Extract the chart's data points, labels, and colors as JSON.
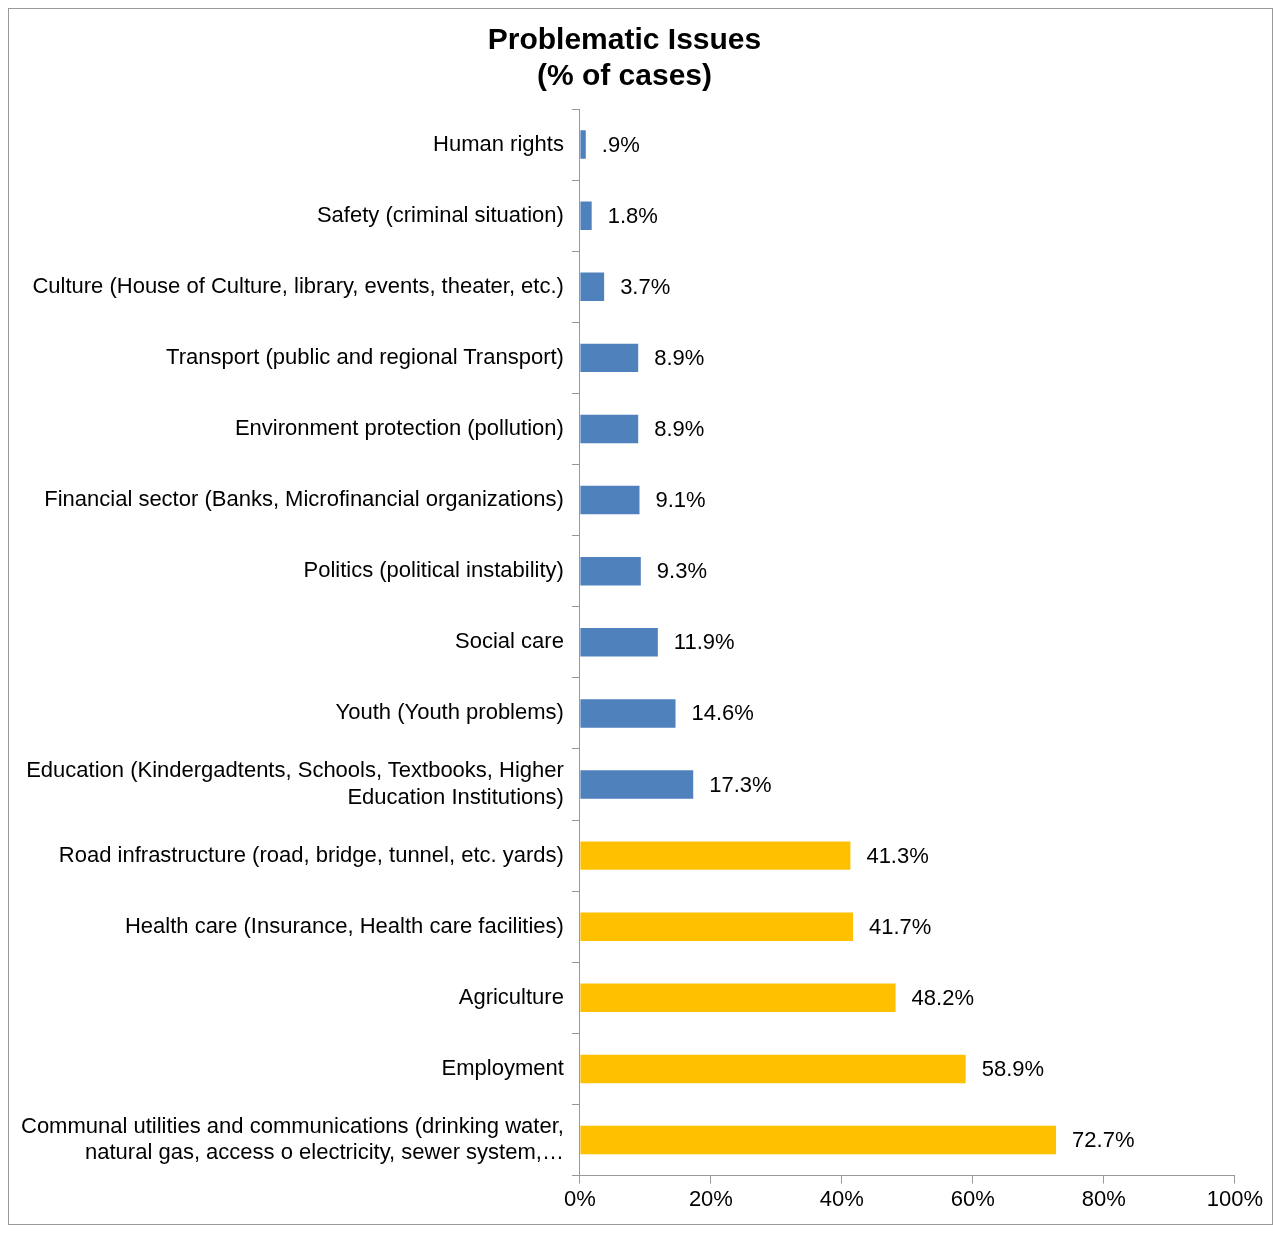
{
  "chart_data": {
    "type": "bar",
    "orientation": "horizontal",
    "title": "Problematic Issues\n(% of cases)",
    "categories": [
      "Human rights",
      "Safety (criminal situation)",
      "Culture (House of Culture, library, events, theater, etc.)",
      "Transport (public and regional Transport)",
      "Environment protection (pollution)",
      "Financial sector (Banks, Microfinancial organizations)",
      "Politics (political instability)",
      "Social care",
      "Youth (Youth problems)",
      "Education (Kindergadtents, Schools, Textbooks, Higher Education Institutions)",
      "Road infrastructure (road, bridge, tunnel, etc. yards)",
      "Health care (Insurance, Health care facilities)",
      "Agriculture",
      "Employment",
      "Communal utilities and communications (drinking water, natural gas, access o electricity, sewer system,…"
    ],
    "values": [
      0.9,
      1.8,
      3.7,
      8.9,
      8.9,
      9.1,
      9.3,
      11.9,
      14.6,
      17.3,
      41.3,
      41.7,
      48.2,
      58.9,
      72.7
    ],
    "value_labels": [
      ".9%",
      "1.8%",
      "3.7%",
      "8.9%",
      "8.9%",
      "9.1%",
      "9.3%",
      "11.9%",
      "14.6%",
      "17.3%",
      "41.3%",
      "41.7%",
      "48.2%",
      "58.9%",
      "72.7%"
    ],
    "colors": [
      "#4f81bd",
      "#4f81bd",
      "#4f81bd",
      "#4f81bd",
      "#4f81bd",
      "#4f81bd",
      "#4f81bd",
      "#4f81bd",
      "#4f81bd",
      "#4f81bd",
      "#ffc000",
      "#ffc000",
      "#ffc000",
      "#ffc000",
      "#ffc000"
    ],
    "xlim": [
      0,
      100
    ],
    "xticks": [
      {
        "value": 0,
        "label": "0%"
      },
      {
        "value": 20,
        "label": "20%"
      },
      {
        "value": 40,
        "label": "40%"
      },
      {
        "value": 60,
        "label": "60%"
      },
      {
        "value": 80,
        "label": "80%"
      },
      {
        "value": 100,
        "label": "100%"
      }
    ]
  }
}
